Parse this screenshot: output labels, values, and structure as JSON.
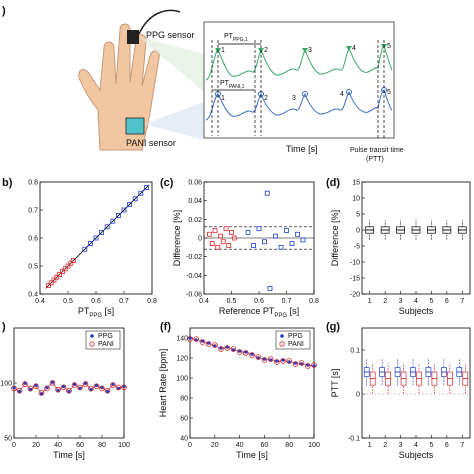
{
  "panel_a": {
    "letter": ")",
    "ppg_sensor_label": "PPG sensor",
    "pani_sensor_label": "PANI sensor",
    "pt_ppg_label": "PT",
    "pt_ppg_sub": "PPG,1",
    "pt_pani_label": "PT",
    "pt_pani_sub": "PANI,1",
    "time_label": "Time [s]",
    "ptt_label_line1": "Pulse transit time",
    "ptt_label_line2": "(PTT)",
    "peak_numbers": [
      "1",
      "2",
      "3",
      "4",
      "5"
    ],
    "colors": {
      "ppg": "#3aa76d",
      "pani": "#3b6cc9",
      "hand": "#f2c6a0",
      "sensor": "#222222",
      "patch": "#4fc3c9"
    }
  },
  "chart_data": [
    {
      "id": "b",
      "type": "scatter",
      "letter": "b)",
      "xlabel": "PT",
      "xlabel_sub": "PPG",
      "xlabel_unit": " [s]",
      "ylabel": "",
      "xlim": [
        0.4,
        0.8
      ],
      "ylim": [
        0.4,
        0.8
      ],
      "xticks": [
        "0.4",
        "0.5",
        "0.6",
        "0.7",
        "0.8"
      ],
      "yticks": [
        "0.4",
        "0.5",
        "0.6",
        "0.7",
        "0.8"
      ],
      "series": [
        {
          "color": "#d62728",
          "marker": "square",
          "x": [
            0.43,
            0.44,
            0.45,
            0.46,
            0.47,
            0.48,
            0.49,
            0.5,
            0.51,
            0.52
          ],
          "y": [
            0.43,
            0.44,
            0.45,
            0.46,
            0.47,
            0.48,
            0.49,
            0.5,
            0.51,
            0.52
          ]
        },
        {
          "color": "#1f3fcc",
          "marker": "square",
          "x": [
            0.56,
            0.58,
            0.6,
            0.62,
            0.64,
            0.66,
            0.68,
            0.7,
            0.72,
            0.74,
            0.76,
            0.78
          ],
          "y": [
            0.56,
            0.58,
            0.6,
            0.62,
            0.64,
            0.66,
            0.68,
            0.7,
            0.72,
            0.74,
            0.76,
            0.78
          ]
        }
      ],
      "fit_line": {
        "x": [
          0.42,
          0.79
        ],
        "y": [
          0.42,
          0.79
        ]
      }
    },
    {
      "id": "c",
      "type": "scatter",
      "letter": "(c)",
      "xlabel": "Reference PT",
      "xlabel_sub": "PPG",
      "xlabel_unit": " [s]",
      "ylabel": "Difference [%]",
      "xlim": [
        0.4,
        0.8
      ],
      "ylim": [
        -0.06,
        0.06
      ],
      "xticks": [
        "0.4",
        "0.5",
        "0.6",
        "0.7",
        "0.8"
      ],
      "yticks": [
        "-0.06",
        "-0.04",
        "-0.02",
        "0",
        "0.02",
        "0.04",
        "0.06"
      ],
      "series": [
        {
          "color": "#d62728",
          "marker": "square",
          "x": [
            0.42,
            0.43,
            0.44,
            0.45,
            0.46,
            0.47,
            0.48,
            0.49,
            0.5,
            0.51
          ],
          "y": [
            0.004,
            -0.006,
            0.008,
            -0.01,
            0.002,
            -0.004,
            0.01,
            -0.008,
            0.006,
            0.0
          ]
        },
        {
          "color": "#1f3fcc",
          "marker": "square",
          "x": [
            0.56,
            0.58,
            0.6,
            0.62,
            0.63,
            0.64,
            0.66,
            0.68,
            0.7,
            0.72,
            0.74,
            0.76
          ],
          "y": [
            0.006,
            -0.008,
            0.01,
            -0.004,
            0.048,
            -0.054,
            0.002,
            -0.01,
            0.008,
            -0.006,
            0.004,
            -0.002
          ]
        }
      ],
      "dashed_lines": [
        0.012,
        -0.012
      ]
    },
    {
      "id": "d",
      "type": "box",
      "letter": "(d)",
      "xlabel": "Subjects",
      "ylabel": "Difference [%]",
      "xlim": [
        0.5,
        7.5
      ],
      "ylim": [
        -20,
        15
      ],
      "xticks": [
        "1",
        "2",
        "3",
        "4",
        "5",
        "6",
        "7"
      ],
      "yticks": [
        "-20",
        "-15",
        "-10",
        "-5",
        "0",
        "5",
        "10",
        "15"
      ],
      "categories": [
        "1",
        "2",
        "3",
        "4",
        "5",
        "6",
        "7"
      ],
      "boxes": [
        {
          "q1": -1,
          "median": 0,
          "q3": 1,
          "lo": -3,
          "hi": 3
        },
        {
          "q1": -1,
          "median": 0,
          "q3": 1,
          "lo": -3,
          "hi": 3
        },
        {
          "q1": -1,
          "median": 0,
          "q3": 1,
          "lo": -3,
          "hi": 3
        },
        {
          "q1": -1,
          "median": 0,
          "q3": 1,
          "lo": -3,
          "hi": 3
        },
        {
          "q1": -1,
          "median": 0,
          "q3": 1,
          "lo": -3,
          "hi": 3
        },
        {
          "q1": -1,
          "median": 0,
          "q3": 1,
          "lo": -3,
          "hi": 3
        },
        {
          "q1": -1,
          "median": 0,
          "q3": 1,
          "lo": -3,
          "hi": 3
        }
      ]
    },
    {
      "id": "e",
      "type": "line",
      "letter": ")",
      "xlabel": "Time [s]",
      "ylabel": "",
      "xlim": [
        0,
        100
      ],
      "ylim": [
        50,
        150
      ],
      "xticks": [
        "0",
        "20",
        "40",
        "60",
        "80",
        "100"
      ],
      "yticks": [
        "50",
        "100"
      ],
      "legend": [
        "PPG",
        "PANI"
      ],
      "series": [
        {
          "name": "PPG",
          "color": "#1f3fcc",
          "marker": "dot",
          "x": [
            0,
            5,
            10,
            15,
            20,
            25,
            30,
            35,
            40,
            45,
            50,
            55,
            60,
            65,
            70,
            75,
            80,
            85,
            90,
            95,
            100
          ],
          "y": [
            96,
            92,
            100,
            94,
            98,
            90,
            96,
            101,
            93,
            97,
            92,
            99,
            95,
            100,
            94,
            98,
            96,
            92,
            99,
            95,
            97
          ]
        },
        {
          "name": "PANI",
          "color": "#d62728",
          "marker": "circle",
          "x": [
            0,
            5,
            10,
            15,
            20,
            25,
            30,
            35,
            40,
            45,
            50,
            55,
            60,
            65,
            70,
            75,
            80,
            85,
            90,
            95,
            100
          ],
          "y": [
            95,
            93,
            99,
            95,
            97,
            91,
            95,
            100,
            94,
            96,
            93,
            98,
            96,
            99,
            95,
            97,
            95,
            93,
            98,
            96,
            96
          ]
        }
      ]
    },
    {
      "id": "f",
      "type": "line",
      "letter": "(f)",
      "xlabel": "Time [s]",
      "ylabel": "Heart Rate [bpm]",
      "xlim": [
        0,
        100
      ],
      "ylim": [
        40,
        150
      ],
      "xticks": [
        "0",
        "20",
        "40",
        "60",
        "80",
        "100"
      ],
      "yticks": [
        "40",
        "60",
        "80",
        "100",
        "120",
        "140"
      ],
      "legend": [
        "PPG",
        "PANI"
      ],
      "series": [
        {
          "name": "PPG",
          "color": "#1f3fcc",
          "marker": "dot",
          "x": [
            0,
            5,
            10,
            15,
            20,
            25,
            30,
            35,
            40,
            45,
            50,
            55,
            60,
            65,
            70,
            75,
            80,
            85,
            90,
            95,
            100
          ],
          "y": [
            140,
            138,
            137,
            135,
            132,
            130,
            131,
            128,
            127,
            126,
            124,
            120,
            119,
            118,
            117,
            118,
            116,
            115,
            114,
            113,
            112
          ]
        },
        {
          "name": "PANI",
          "color": "#d62728",
          "marker": "circle",
          "x": [
            0,
            5,
            10,
            15,
            20,
            25,
            30,
            35,
            40,
            45,
            50,
            55,
            60,
            65,
            70,
            75,
            80,
            85,
            90,
            95,
            100
          ],
          "y": [
            139,
            139,
            136,
            134,
            133,
            129,
            130,
            129,
            126,
            125,
            123,
            121,
            118,
            119,
            116,
            117,
            117,
            114,
            115,
            112,
            113
          ]
        }
      ]
    },
    {
      "id": "g",
      "type": "box",
      "letter": "(g)",
      "xlabel": "Subjects",
      "ylabel": "PTT [s]",
      "xlim": [
        0.5,
        7.5
      ],
      "ylim": [
        -0.1,
        0.15
      ],
      "xticks": [
        "1",
        "2",
        "3",
        "4",
        "5",
        "6",
        "7"
      ],
      "yticks": [
        "-0.1",
        "0",
        "0.1"
      ],
      "categories": [
        "1",
        "2",
        "3",
        "4",
        "5",
        "6",
        "7"
      ],
      "boxes_ppg": [
        {
          "q1": 0.04,
          "median": 0.05,
          "q3": 0.06,
          "lo": 0.02,
          "hi": 0.08
        },
        {
          "q1": 0.04,
          "median": 0.05,
          "q3": 0.06,
          "lo": 0.02,
          "hi": 0.08
        },
        {
          "q1": 0.04,
          "median": 0.05,
          "q3": 0.06,
          "lo": 0.02,
          "hi": 0.08
        },
        {
          "q1": 0.04,
          "median": 0.05,
          "q3": 0.06,
          "lo": 0.02,
          "hi": 0.08
        },
        {
          "q1": 0.04,
          "median": 0.05,
          "q3": 0.06,
          "lo": 0.02,
          "hi": 0.08
        },
        {
          "q1": 0.04,
          "median": 0.05,
          "q3": 0.06,
          "lo": 0.02,
          "hi": 0.08
        },
        {
          "q1": 0.04,
          "median": 0.05,
          "q3": 0.06,
          "lo": 0.02,
          "hi": 0.08
        }
      ],
      "boxes_pani": [
        {
          "q1": 0.02,
          "median": 0.035,
          "q3": 0.05,
          "lo": 0.0,
          "hi": 0.07
        },
        {
          "q1": 0.02,
          "median": 0.035,
          "q3": 0.05,
          "lo": 0.0,
          "hi": 0.07
        },
        {
          "q1": 0.02,
          "median": 0.035,
          "q3": 0.05,
          "lo": 0.0,
          "hi": 0.07
        },
        {
          "q1": 0.02,
          "median": 0.035,
          "q3": 0.05,
          "lo": 0.0,
          "hi": 0.07
        },
        {
          "q1": 0.02,
          "median": 0.035,
          "q3": 0.05,
          "lo": 0.0,
          "hi": 0.07
        },
        {
          "q1": 0.02,
          "median": 0.035,
          "q3": 0.05,
          "lo": 0.0,
          "hi": 0.07
        },
        {
          "q1": 0.02,
          "median": 0.035,
          "q3": 0.05,
          "lo": 0.0,
          "hi": 0.07
        }
      ]
    }
  ]
}
